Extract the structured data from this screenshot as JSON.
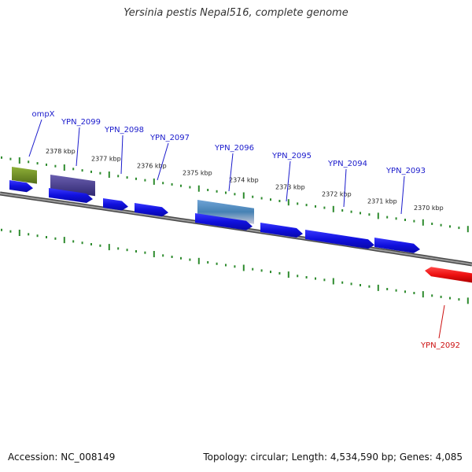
{
  "title": "Yersinia pestis Nepal516, complete genome",
  "footer": {
    "accession": "Accession: NC_008149",
    "topology": "Topology: circular; Length: 4,534,590 bp; Genes: 4,085"
  },
  "colors": {
    "backbone": "#7a7a7a",
    "ticks": "#2e8b2e",
    "forward_gene": "#1a1aee",
    "reverse_gene": "#ee1111",
    "forward_label": "#1a1acc",
    "reverse_label": "#cc1111",
    "scale_label": "#222222"
  },
  "scale_labels": [
    "2378 kbp",
    "2377 kbp",
    "2376 kbp",
    "2375 kbp",
    "2374 kbp",
    "2373 kbp",
    "2372 kbp",
    "2371 kbp",
    "2370 kbp"
  ],
  "genes": [
    {
      "label": "ompX",
      "strand": "forward",
      "color": "#1a1aee"
    },
    {
      "label": "YPN_2099",
      "strand": "forward",
      "color": "#1a1aee"
    },
    {
      "label": "YPN_2098",
      "strand": "forward",
      "color": "#1a1aee"
    },
    {
      "label": "YPN_2097",
      "strand": "forward",
      "color": "#1a1aee"
    },
    {
      "label": "YPN_2096",
      "strand": "forward",
      "color": "#1a1aee"
    },
    {
      "label": "YPN_2095",
      "strand": "forward",
      "color": "#1a1aee"
    },
    {
      "label": "YPN_2094",
      "strand": "forward",
      "color": "#1a1aee"
    },
    {
      "label": "YPN_2093",
      "strand": "forward",
      "color": "#1a1aee"
    },
    {
      "label": "YPN_2092",
      "strand": "reverse",
      "color": "#ee1111"
    }
  ],
  "features": [
    {
      "name": "ompX-feature",
      "color": "#6b8e23"
    },
    {
      "name": "YPN_2099-feature",
      "color": "#4b3f8f"
    },
    {
      "name": "YPN_2096-feature",
      "color": "#4682b4"
    }
  ]
}
